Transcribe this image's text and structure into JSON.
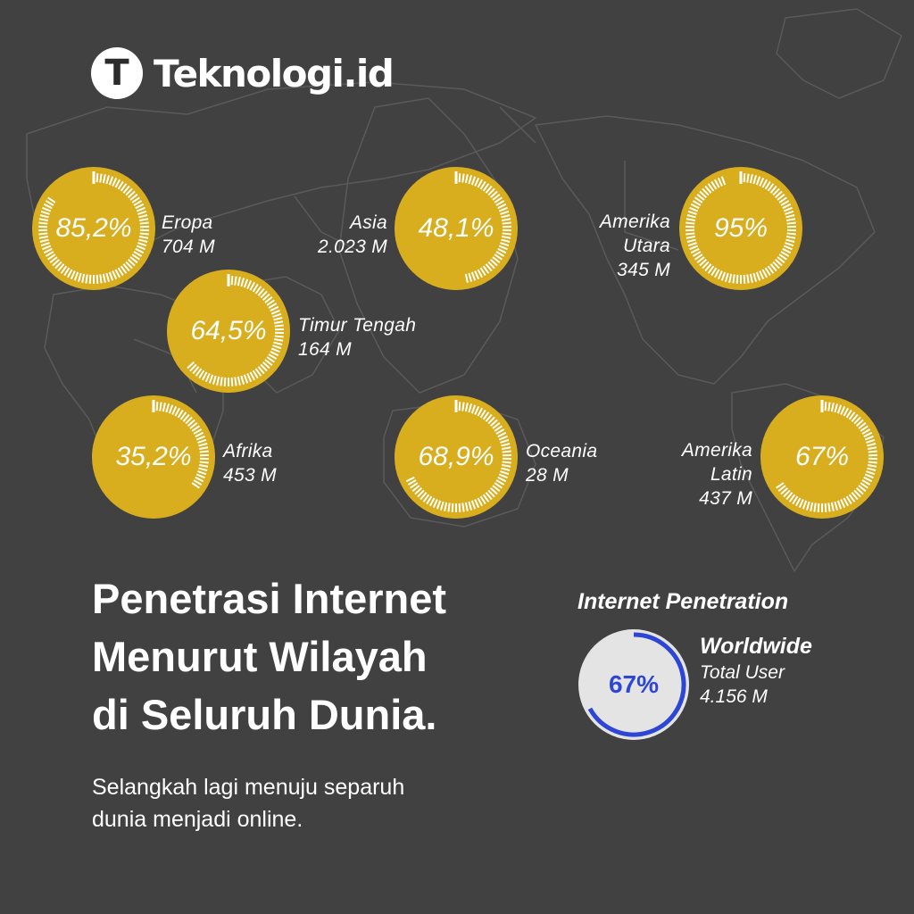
{
  "brand": {
    "logo_letter": "T",
    "name": "Teknologi.id"
  },
  "colors": {
    "background": "#414141",
    "bubble": "#d8ad1e",
    "tick": "#ffffff",
    "accent": "#2d46d6",
    "gauge_bg": "#e4e4e4"
  },
  "regions": [
    {
      "id": "eropa",
      "percent_label": "85,2%",
      "value": 85.2,
      "name_lines": [
        "Eropa"
      ],
      "users": "704 M"
    },
    {
      "id": "asia",
      "percent_label": "48,1%",
      "value": 48.1,
      "name_lines": [
        "Asia"
      ],
      "users": "2.023 M"
    },
    {
      "id": "amerika-utara",
      "percent_label": "95%",
      "value": 95,
      "name_lines": [
        "Amerika",
        "Utara"
      ],
      "users": "345 M"
    },
    {
      "id": "timur-tengah",
      "percent_label": "64,5%",
      "value": 64.5,
      "name_lines": [
        "Timur Tengah"
      ],
      "users": "164 M"
    },
    {
      "id": "afrika",
      "percent_label": "35,2%",
      "value": 35.2,
      "name_lines": [
        "Afrika"
      ],
      "users": "453 M"
    },
    {
      "id": "oceania",
      "percent_label": "68,9%",
      "value": 68.9,
      "name_lines": [
        "Oceania"
      ],
      "users": "28 M"
    },
    {
      "id": "amerika-latin",
      "percent_label": "67%",
      "value": 67,
      "name_lines": [
        "Amerika",
        "Latin"
      ],
      "users": "437 M"
    }
  ],
  "headline": {
    "lines": [
      "Penetrasi Internet",
      "Menurut Wilayah",
      "di Seluruh Dunia."
    ]
  },
  "subtitle": {
    "lines": [
      "Selangkah lagi menuju separuh",
      "dunia menjadi online."
    ]
  },
  "worldwide": {
    "heading": "Internet Penetration",
    "percent_label": "67%",
    "value": 67,
    "name": "Worldwide",
    "total_label": "Total User",
    "total": "4.156 M"
  }
}
